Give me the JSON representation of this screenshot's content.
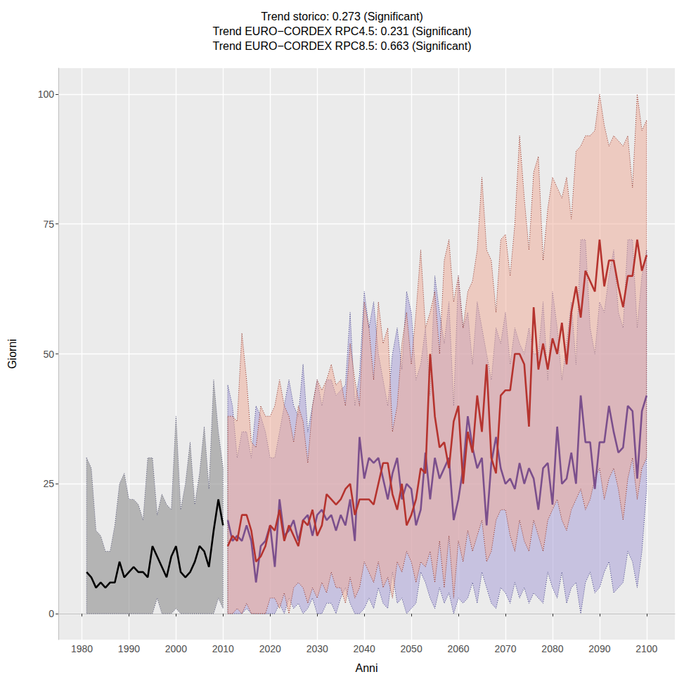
{
  "chart_data": {
    "type": "line",
    "title": "Trend storico: 0.273 (Significant)\nTrend EURO−CORDEX RPC4.5: 0.231 (Significant)\nTrend EURO−CORDEX RPC8.5: 0.663 (Significant)",
    "x_label": "Anni",
    "y_label": "Giorni",
    "xlim": [
      1975,
      2106
    ],
    "xticks": [
      1980,
      1990,
      2000,
      2010,
      2020,
      2030,
      2040,
      2050,
      2060,
      2070,
      2080,
      2090,
      2100
    ],
    "ylim": [
      -5,
      105
    ],
    "yticks": [
      0,
      25,
      50,
      75,
      100
    ],
    "grid": true,
    "series": [
      {
        "name": "storico",
        "color": "#000000",
        "x": [
          1981,
          1982,
          1983,
          1984,
          1985,
          1986,
          1987,
          1988,
          1989,
          1990,
          1991,
          1992,
          1993,
          1994,
          1995,
          1996,
          1997,
          1998,
          1999,
          2000,
          2001,
          2002,
          2003,
          2004,
          2005,
          2006,
          2007,
          2008,
          2009,
          2010
        ],
        "values": [
          8,
          7,
          5,
          6,
          5,
          6,
          6,
          10,
          7,
          8,
          9,
          8,
          8,
          7,
          13,
          11,
          9,
          7,
          11,
          13,
          8,
          7,
          8,
          10,
          13,
          12,
          9,
          16,
          22,
          17
        ],
        "lower": [
          0,
          0,
          0,
          0,
          0,
          0,
          0,
          0,
          0,
          0,
          0,
          0,
          0,
          0,
          0,
          3,
          0,
          0,
          0,
          1,
          0,
          0,
          0,
          0,
          0,
          0,
          0,
          0,
          3,
          1
        ],
        "upper": [
          30,
          28,
          16,
          15,
          12,
          12,
          17,
          25,
          27,
          22,
          22,
          21,
          18,
          30,
          30,
          19,
          23,
          21,
          20,
          38,
          20,
          25,
          33,
          21,
          27,
          36,
          24,
          45,
          35,
          28
        ]
      },
      {
        "name": "EURO−CORDEX RPC4.5",
        "color": "#7b4f8c",
        "x": [
          2011,
          2012,
          2013,
          2014,
          2015,
          2016,
          2017,
          2018,
          2019,
          2020,
          2021,
          2022,
          2023,
          2024,
          2025,
          2026,
          2027,
          2028,
          2029,
          2030,
          2031,
          2032,
          2033,
          2034,
          2035,
          2036,
          2037,
          2038,
          2039,
          2040,
          2041,
          2042,
          2043,
          2044,
          2045,
          2046,
          2047,
          2048,
          2049,
          2050,
          2051,
          2052,
          2053,
          2054,
          2055,
          2056,
          2057,
          2058,
          2059,
          2060,
          2061,
          2062,
          2063,
          2064,
          2065,
          2066,
          2067,
          2068,
          2069,
          2070,
          2071,
          2072,
          2073,
          2074,
          2075,
          2076,
          2077,
          2078,
          2079,
          2080,
          2081,
          2082,
          2083,
          2084,
          2085,
          2086,
          2087,
          2088,
          2089,
          2090,
          2091,
          2092,
          2093,
          2094,
          2095,
          2096,
          2097,
          2098,
          2099,
          2100
        ],
        "values": [
          18,
          14,
          15,
          14,
          17,
          14,
          6,
          13,
          14,
          17,
          9,
          22,
          15,
          16,
          18,
          14,
          18,
          19,
          15,
          19,
          20,
          18,
          19,
          16,
          19,
          17,
          22,
          14,
          34,
          26,
          30,
          29,
          30,
          26,
          22,
          27,
          30,
          22,
          25,
          24,
          17,
          20,
          31,
          22,
          30,
          26,
          28,
          30,
          18,
          22,
          28,
          38,
          32,
          28,
          30,
          17,
          29,
          34,
          28,
          25,
          26,
          24,
          29,
          25,
          28,
          26,
          20,
          28,
          29,
          21,
          36,
          25,
          26,
          31,
          25,
          42,
          33,
          33,
          24,
          33,
          33,
          40,
          35,
          31,
          32,
          40,
          39,
          26,
          39,
          42
        ],
        "lower": [
          0,
          0,
          0,
          0,
          1,
          0,
          0,
          0,
          0,
          0,
          0,
          2,
          0,
          3,
          1,
          2,
          0,
          1,
          3,
          0,
          0,
          2,
          2,
          0,
          3,
          5,
          2,
          0,
          0,
          1,
          3,
          1,
          5,
          2,
          1,
          8,
          2,
          3,
          0,
          1,
          2,
          8,
          6,
          3,
          1,
          5,
          2,
          4,
          0,
          3,
          2,
          3,
          6,
          2,
          8,
          5,
          2,
          1,
          5,
          4,
          2,
          6,
          3,
          5,
          2,
          4,
          3,
          2,
          8,
          5,
          3,
          8,
          2,
          5,
          6,
          0,
          6,
          8,
          4,
          5,
          8,
          10,
          4,
          5,
          6,
          12,
          10,
          5,
          12,
          24
        ],
        "upper": [
          44,
          40,
          30,
          35,
          35,
          30,
          40,
          38,
          35,
          30,
          30,
          35,
          40,
          45,
          40,
          38,
          48,
          35,
          40,
          45,
          40,
          45,
          45,
          42,
          43,
          44,
          58,
          40,
          46,
          62,
          55,
          60,
          50,
          45,
          40,
          50,
          55,
          47,
          62,
          58,
          45,
          48,
          55,
          42,
          65,
          58,
          52,
          60,
          40,
          65,
          55,
          58,
          48,
          60,
          55,
          50,
          45,
          55,
          52,
          58,
          48,
          55,
          52,
          50,
          55,
          50,
          50,
          60,
          45,
          62,
          55,
          45,
          52,
          60,
          48,
          72,
          72,
          55,
          50,
          60,
          58,
          65,
          70,
          58,
          55,
          72,
          72,
          55,
          65,
          70
        ]
      },
      {
        "name": "EURO−CORDEX RPC8.5",
        "color": "#b5332e",
        "x": [
          2011,
          2012,
          2013,
          2014,
          2015,
          2016,
          2017,
          2018,
          2019,
          2020,
          2021,
          2022,
          2023,
          2024,
          2025,
          2026,
          2027,
          2028,
          2029,
          2030,
          2031,
          2032,
          2033,
          2034,
          2035,
          2036,
          2037,
          2038,
          2039,
          2040,
          2041,
          2042,
          2043,
          2044,
          2045,
          2046,
          2047,
          2048,
          2049,
          2050,
          2051,
          2052,
          2053,
          2054,
          2055,
          2056,
          2057,
          2058,
          2059,
          2060,
          2061,
          2062,
          2063,
          2064,
          2065,
          2066,
          2067,
          2068,
          2069,
          2070,
          2071,
          2072,
          2073,
          2074,
          2075,
          2076,
          2077,
          2078,
          2079,
          2080,
          2081,
          2082,
          2083,
          2084,
          2085,
          2086,
          2087,
          2088,
          2089,
          2090,
          2091,
          2092,
          2093,
          2094,
          2095,
          2096,
          2097,
          2098,
          2099,
          2100
        ],
        "values": [
          13,
          15,
          14,
          19,
          19,
          16,
          10,
          11,
          13,
          17,
          16,
          20,
          14,
          17,
          15,
          13,
          18,
          17,
          20,
          15,
          17,
          23,
          22,
          21,
          22,
          24,
          25,
          19,
          22,
          22,
          22,
          21,
          25,
          29,
          29,
          23,
          20,
          25,
          17,
          19,
          22,
          28,
          27,
          50,
          38,
          32,
          33,
          28,
          37,
          40,
          25,
          35,
          31,
          42,
          35,
          48,
          30,
          27,
          42,
          43,
          43,
          50,
          50,
          48,
          36,
          59,
          47,
          52,
          47,
          53,
          50,
          56,
          48,
          58,
          63,
          57,
          66,
          64,
          62,
          72,
          63,
          68,
          68,
          63,
          59,
          65,
          65,
          72,
          66,
          69
        ],
        "lower": [
          0,
          0,
          1,
          0,
          2,
          0,
          0,
          0,
          0,
          3,
          3,
          1,
          4,
          0,
          5,
          6,
          5,
          2,
          5,
          3,
          6,
          4,
          8,
          5,
          5,
          2,
          7,
          3,
          5,
          10,
          8,
          6,
          10,
          5,
          7,
          3,
          10,
          8,
          12,
          10,
          6,
          10,
          9,
          12,
          6,
          14,
          5,
          15,
          3,
          14,
          10,
          16,
          12,
          15,
          18,
          10,
          12,
          18,
          20,
          20,
          15,
          12,
          18,
          14,
          12,
          18,
          15,
          12,
          18,
          20,
          22,
          18,
          16,
          20,
          22,
          24,
          20,
          22,
          26,
          28,
          22,
          26,
          28,
          24,
          18,
          26,
          30,
          22,
          28,
          30
        ],
        "upper": [
          38,
          38,
          37,
          54,
          45,
          33,
          32,
          40,
          38,
          38,
          40,
          45,
          40,
          38,
          33,
          40,
          37,
          29,
          40,
          45,
          43,
          45,
          48,
          44,
          45,
          40,
          52,
          45,
          40,
          60,
          55,
          45,
          60,
          52,
          55,
          35,
          40,
          52,
          58,
          48,
          58,
          70,
          55,
          58,
          62,
          50,
          68,
          72,
          60,
          65,
          55,
          62,
          64,
          70,
          84,
          70,
          68,
          58,
          72,
          73,
          65,
          75,
          92,
          80,
          70,
          85,
          88,
          68,
          78,
          84,
          82,
          80,
          84,
          76,
          89,
          90,
          92,
          92,
          93,
          100,
          94,
          90,
          92,
          91,
          90,
          92,
          82,
          100,
          93,
          95
        ]
      }
    ]
  }
}
